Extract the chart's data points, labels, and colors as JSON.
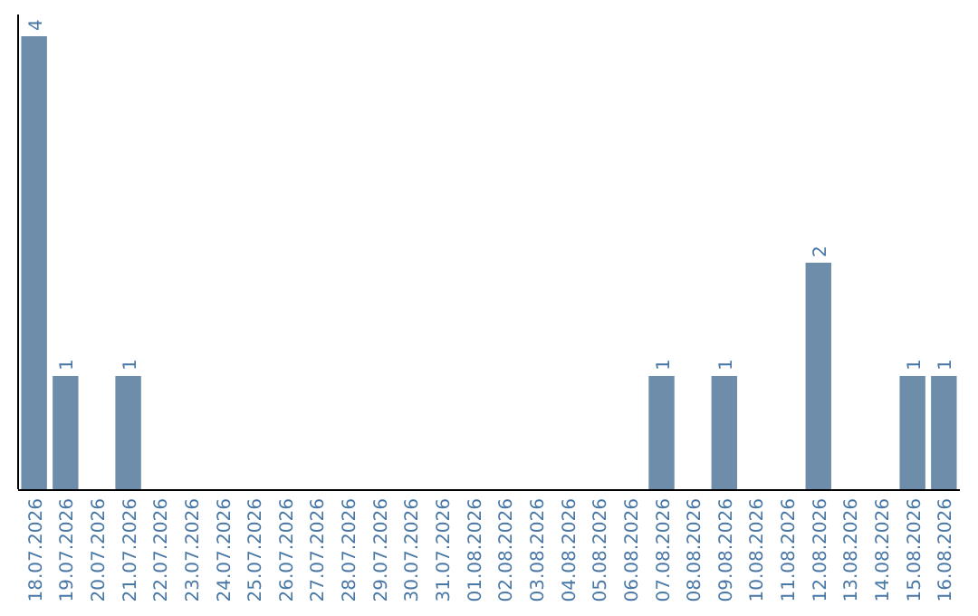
{
  "chart_data": {
    "type": "bar",
    "categories": [
      "18.07.2026",
      "19.07.2026",
      "20.07.2026",
      "21.07.2026",
      "22.07.2026",
      "23.07.2026",
      "24.07.2026",
      "25.07.2026",
      "26.07.2026",
      "27.07.2026",
      "28.07.2026",
      "29.07.2026",
      "30.07.2026",
      "31.07.2026",
      "01.08.2026",
      "02.08.2026",
      "03.08.2026",
      "04.08.2026",
      "05.08.2026",
      "06.08.2026",
      "07.08.2026",
      "08.08.2026",
      "09.08.2026",
      "10.08.2026",
      "11.08.2026",
      "12.08.2026",
      "13.08.2026",
      "14.08.2026",
      "15.08.2026",
      "16.08.2026"
    ],
    "values": [
      4,
      1,
      0,
      1,
      0,
      0,
      0,
      0,
      0,
      0,
      0,
      0,
      0,
      0,
      0,
      0,
      0,
      0,
      0,
      0,
      1,
      0,
      1,
      0,
      0,
      2,
      0,
      0,
      1,
      1
    ],
    "value_labels": [
      "4",
      "1",
      null,
      "1",
      null,
      null,
      null,
      null,
      null,
      null,
      null,
      null,
      null,
      null,
      null,
      null,
      null,
      null,
      null,
      null,
      "1",
      null,
      "1",
      null,
      null,
      "2",
      null,
      null,
      "1",
      "1"
    ],
    "color": "#6e8dab"
  }
}
